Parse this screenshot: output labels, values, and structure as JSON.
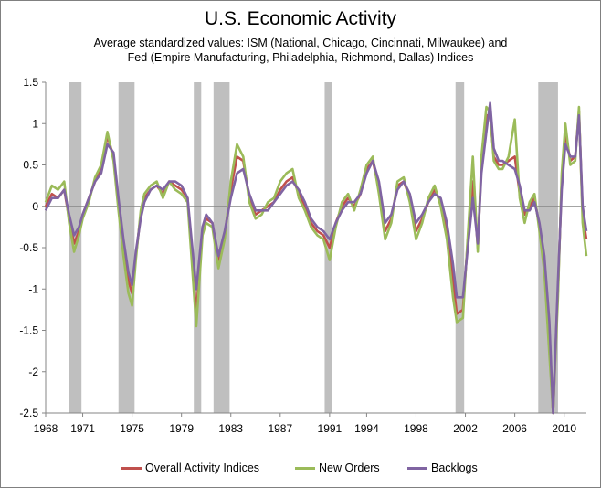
{
  "chart_data": {
    "type": "line",
    "title": "U.S. Economic Activity",
    "subtitle_lines": [
      "Average standardized values: ISM (National, Chicago, Cincinnati, Milwaukee) and",
      "Fed (Empire Manufacturing,  Philadelphia, Richmond, Dallas) Indices"
    ],
    "xlabel": "",
    "ylabel": "",
    "xlim": [
      1968,
      2011.8
    ],
    "ylim": [
      -2.5,
      1.5
    ],
    "x_ticks": [
      1968,
      1971,
      1975,
      1979,
      1983,
      1987,
      1991,
      1994,
      1998,
      2002,
      2006,
      2010
    ],
    "y_ticks": [
      "1.5",
      "1",
      "0.5",
      "0",
      "-0.5",
      "-1",
      "-1.5",
      "-2",
      "-2.5"
    ],
    "grid": false,
    "legend_position": "bottom",
    "recession_bands": [
      [
        1969.9,
        1970.9
      ],
      [
        1973.9,
        1975.2
      ],
      [
        1980.0,
        1980.6
      ],
      [
        1981.6,
        1982.9
      ],
      [
        1990.6,
        1991.2
      ],
      [
        2001.2,
        2001.9
      ],
      [
        2007.9,
        2009.5
      ]
    ],
    "series": [
      {
        "name": "Overall Activity Indices",
        "color": "#C0504D",
        "x": [
          1968,
          1968.5,
          1969,
          1969.5,
          1969.9,
          1970.3,
          1970.7,
          1971,
          1971.5,
          1972,
          1972.5,
          1973,
          1973.5,
          1973.9,
          1974.3,
          1974.7,
          1975,
          1975.3,
          1975.7,
          1976,
          1976.5,
          1977,
          1977.5,
          1978,
          1978.5,
          1979,
          1979.5,
          1980.2,
          1980.7,
          1981,
          1981.5,
          1982,
          1982.5,
          1983,
          1983.5,
          1984,
          1984.5,
          1985,
          1985.5,
          1986,
          1986.5,
          1987,
          1987.5,
          1988,
          1988.5,
          1989,
          1989.5,
          1990,
          1990.5,
          1991,
          1991.5,
          1992,
          1992.5,
          1993,
          1993.5,
          1994,
          1994.5,
          1995,
          1995.5,
          1996,
          1996.5,
          1997,
          1997.5,
          1998,
          1998.5,
          1999,
          1999.5,
          2000,
          2000.5,
          2001,
          2001.3,
          2001.8,
          2002.2,
          2002.6,
          2003,
          2003.3,
          2003.7,
          2004,
          2004.3,
          2004.7,
          2005,
          2005.5,
          2006,
          2006.4,
          2006.8,
          2007.2,
          2007.6,
          2008,
          2008.4,
          2008.8,
          2009.1,
          2009.5,
          2009.8,
          2010.1,
          2010.5,
          2010.9,
          2011.2,
          2011.5,
          2011.8
        ],
        "y": [
          0.0,
          0.15,
          0.1,
          0.2,
          -0.15,
          -0.45,
          -0.3,
          -0.1,
          0.1,
          0.3,
          0.45,
          0.85,
          0.6,
          0.05,
          -0.5,
          -0.9,
          -1.05,
          -0.6,
          -0.1,
          0.1,
          0.2,
          0.25,
          0.15,
          0.3,
          0.25,
          0.2,
          0.1,
          -1.3,
          -0.3,
          -0.15,
          -0.2,
          -0.65,
          -0.35,
          0.2,
          0.6,
          0.55,
          0.1,
          -0.1,
          -0.05,
          0.0,
          0.05,
          0.2,
          0.3,
          0.35,
          0.15,
          0.0,
          -0.2,
          -0.3,
          -0.35,
          -0.5,
          -0.2,
          0.0,
          0.1,
          0.0,
          0.15,
          0.45,
          0.55,
          0.2,
          -0.3,
          -0.15,
          0.25,
          0.3,
          0.1,
          -0.3,
          -0.15,
          0.05,
          0.2,
          0.05,
          -0.3,
          -0.9,
          -1.3,
          -1.25,
          -0.4,
          0.3,
          -0.5,
          0.5,
          1.1,
          1.1,
          0.6,
          0.5,
          0.5,
          0.55,
          0.6,
          0.15,
          -0.1,
          0.0,
          0.1,
          -0.25,
          -0.7,
          -1.6,
          -2.5,
          -1.0,
          0.3,
          0.9,
          0.55,
          0.6,
          1.15,
          -0.1,
          -0.4
        ]
      },
      {
        "name": "New Orders",
        "color": "#9BBB59",
        "x": [
          1968,
          1968.5,
          1969,
          1969.5,
          1969.9,
          1970.3,
          1970.7,
          1971,
          1971.5,
          1972,
          1972.5,
          1973,
          1973.5,
          1973.9,
          1974.3,
          1974.7,
          1975,
          1975.3,
          1975.7,
          1976,
          1976.5,
          1977,
          1977.5,
          1978,
          1978.5,
          1979,
          1979.5,
          1980.2,
          1980.7,
          1981,
          1981.5,
          1982,
          1982.5,
          1983,
          1983.5,
          1984,
          1984.5,
          1985,
          1985.5,
          1986,
          1986.5,
          1987,
          1987.5,
          1988,
          1988.5,
          1989,
          1989.5,
          1990,
          1990.5,
          1991,
          1991.5,
          1992,
          1992.5,
          1993,
          1993.5,
          1994,
          1994.5,
          1995,
          1995.5,
          1996,
          1996.5,
          1997,
          1997.5,
          1998,
          1998.5,
          1999,
          1999.5,
          2000,
          2000.5,
          2001,
          2001.3,
          2001.8,
          2002.2,
          2002.6,
          2003,
          2003.3,
          2003.7,
          2004,
          2004.3,
          2004.7,
          2005,
          2005.5,
          2006,
          2006.4,
          2006.8,
          2007.2,
          2007.6,
          2008,
          2008.4,
          2008.8,
          2009.1,
          2009.5,
          2009.8,
          2010.1,
          2010.5,
          2010.9,
          2011.2,
          2011.5,
          2011.8
        ],
        "y": [
          0.05,
          0.25,
          0.2,
          0.3,
          -0.2,
          -0.55,
          -0.35,
          -0.15,
          0.05,
          0.35,
          0.5,
          0.9,
          0.55,
          -0.05,
          -0.6,
          -1.05,
          -1.2,
          -0.65,
          -0.05,
          0.15,
          0.25,
          0.3,
          0.1,
          0.3,
          0.2,
          0.15,
          0.05,
          -1.45,
          -0.35,
          -0.2,
          -0.25,
          -0.75,
          -0.4,
          0.3,
          0.75,
          0.6,
          0.05,
          -0.15,
          -0.1,
          0.05,
          0.1,
          0.3,
          0.4,
          0.45,
          0.1,
          -0.05,
          -0.25,
          -0.35,
          -0.4,
          -0.65,
          -0.25,
          0.05,
          0.15,
          -0.05,
          0.2,
          0.5,
          0.6,
          0.15,
          -0.4,
          -0.2,
          0.3,
          0.35,
          0.05,
          -0.4,
          -0.2,
          0.1,
          0.25,
          0.0,
          -0.4,
          -1.1,
          -1.4,
          -1.35,
          -0.35,
          0.6,
          -0.55,
          0.6,
          1.2,
          1.15,
          0.55,
          0.45,
          0.45,
          0.6,
          1.05,
          0.1,
          -0.2,
          0.05,
          0.15,
          -0.3,
          -0.8,
          -1.8,
          -2.5,
          -1.1,
          0.4,
          1.0,
          0.5,
          0.55,
          1.2,
          -0.2,
          -0.6
        ]
      },
      {
        "name": "Backlogs",
        "color": "#8064A2",
        "x": [
          1968,
          1968.5,
          1969,
          1969.5,
          1969.9,
          1970.3,
          1970.7,
          1971,
          1971.5,
          1972,
          1972.5,
          1973,
          1973.5,
          1973.9,
          1974.3,
          1974.7,
          1975,
          1975.3,
          1975.7,
          1976,
          1976.5,
          1977,
          1977.5,
          1978,
          1978.5,
          1979,
          1979.5,
          1980.2,
          1980.7,
          1981,
          1981.5,
          1982,
          1982.5,
          1983,
          1983.5,
          1984,
          1984.5,
          1985,
          1985.5,
          1986,
          1986.5,
          1987,
          1987.5,
          1988,
          1988.5,
          1989,
          1989.5,
          1990,
          1990.5,
          1991,
          1991.5,
          1992,
          1992.5,
          1993,
          1993.5,
          1994,
          1994.5,
          1995,
          1995.5,
          1996,
          1996.5,
          1997,
          1997.5,
          1998,
          1998.5,
          1999,
          1999.5,
          2000,
          2000.5,
          2001,
          2001.3,
          2001.8,
          2002.2,
          2002.6,
          2003,
          2003.3,
          2003.7,
          2004,
          2004.3,
          2004.7,
          2005,
          2005.5,
          2006,
          2006.4,
          2006.8,
          2007.2,
          2007.6,
          2008,
          2008.4,
          2008.8,
          2009.1,
          2009.5,
          2009.8,
          2010.1,
          2010.5,
          2010.9,
          2011.2,
          2011.5,
          2011.8
        ],
        "y": [
          -0.05,
          0.1,
          0.1,
          0.2,
          -0.1,
          -0.35,
          -0.25,
          -0.1,
          0.1,
          0.3,
          0.4,
          0.75,
          0.65,
          0.1,
          -0.4,
          -0.8,
          -0.95,
          -0.55,
          -0.15,
          0.05,
          0.2,
          0.25,
          0.2,
          0.3,
          0.3,
          0.25,
          0.1,
          -1.0,
          -0.25,
          -0.1,
          -0.2,
          -0.6,
          -0.3,
          0.1,
          0.4,
          0.45,
          0.15,
          -0.05,
          -0.05,
          -0.05,
          0.05,
          0.15,
          0.25,
          0.3,
          0.2,
          0.05,
          -0.15,
          -0.25,
          -0.3,
          -0.4,
          -0.2,
          -0.05,
          0.05,
          0.05,
          0.15,
          0.4,
          0.55,
          0.3,
          -0.2,
          -0.1,
          0.2,
          0.3,
          0.15,
          -0.2,
          -0.1,
          0.05,
          0.15,
          0.1,
          -0.2,
          -0.7,
          -1.1,
          -1.1,
          -0.5,
          0.1,
          -0.45,
          0.4,
          0.9,
          1.25,
          0.7,
          0.55,
          0.55,
          0.5,
          0.45,
          0.25,
          -0.05,
          -0.05,
          0.05,
          -0.2,
          -0.6,
          -1.4,
          -2.5,
          -0.9,
          0.2,
          0.75,
          0.6,
          0.6,
          1.1,
          0.0,
          -0.3
        ]
      }
    ]
  }
}
